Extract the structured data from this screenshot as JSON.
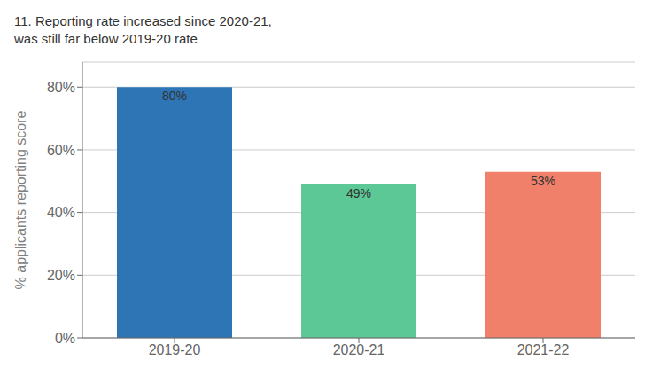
{
  "chart_data": {
    "type": "bar",
    "title": "11. Reporting rate increased since 2020-21,\nwas still far below 2019-20 rate",
    "ylabel": "% applicants reporting score",
    "categories": [
      "2019-20",
      "2020-21",
      "2021-22"
    ],
    "values": [
      0.8,
      0.49,
      0.53
    ],
    "value_labels": [
      "80%",
      "49%",
      "53%"
    ],
    "data_labels": true,
    "colors": [
      "#2E75B6",
      "#5CC896",
      "#F0806A"
    ],
    "ylim": [
      0,
      0.88
    ],
    "yticks": [
      {
        "value": 0,
        "label": "0%"
      },
      {
        "value": 0.2,
        "label": "20%"
      },
      {
        "value": 0.4,
        "label": "40%"
      },
      {
        "value": 0.6,
        "label": "60%"
      },
      {
        "value": 0.8,
        "label": "80%"
      }
    ],
    "grid": true
  }
}
